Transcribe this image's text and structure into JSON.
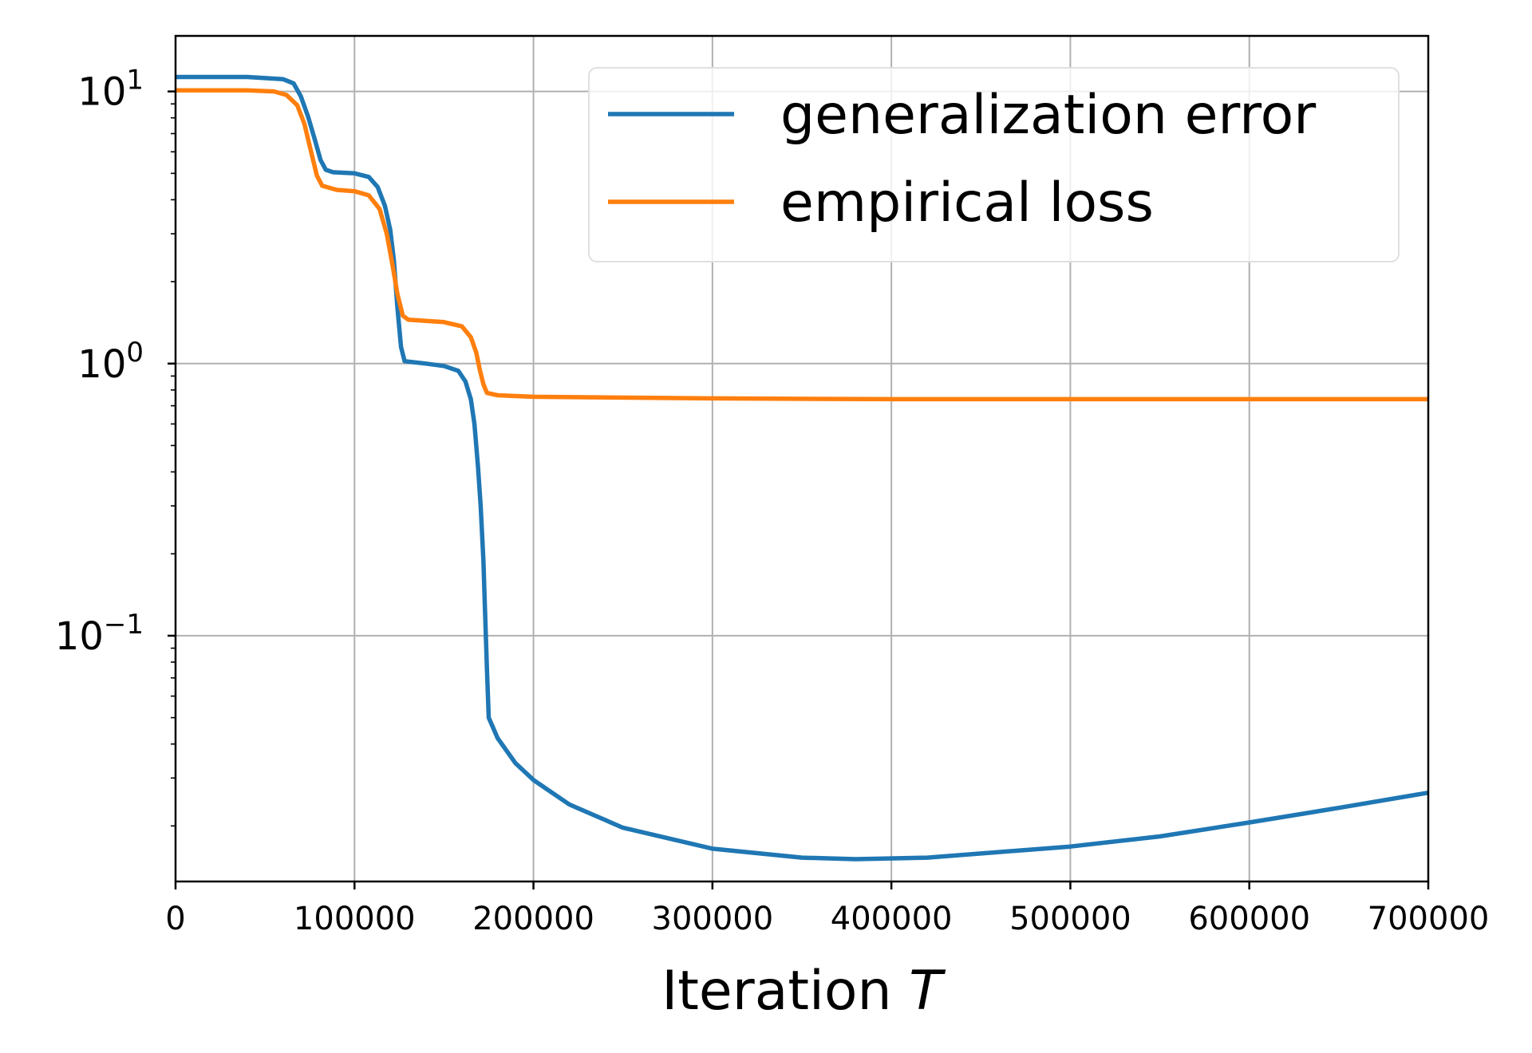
{
  "chart_data": {
    "type": "line",
    "title": "",
    "xlabel_prefix": "Iteration ",
    "xlabel_var": "T",
    "ylabel": "",
    "xscale": "linear",
    "yscale": "log",
    "xlim": [
      0,
      700000
    ],
    "ylim": [
      0.0125,
      16
    ],
    "grid": true,
    "legend_placement": "top-right",
    "x_ticks": [
      {
        "value": 0,
        "label": "0"
      },
      {
        "value": 100000,
        "label": "100000"
      },
      {
        "value": 200000,
        "label": "200000"
      },
      {
        "value": 300000,
        "label": "300000"
      },
      {
        "value": 400000,
        "label": "400000"
      },
      {
        "value": 500000,
        "label": "500000"
      },
      {
        "value": 600000,
        "label": "600000"
      },
      {
        "value": 700000,
        "label": "700000"
      }
    ],
    "y_ticks": [
      {
        "value": 10,
        "base": "10",
        "exp": "1"
      },
      {
        "value": 1,
        "base": "10",
        "exp": "0"
      },
      {
        "value": 0.1,
        "base": "10",
        "exp": "−1"
      }
    ],
    "series": [
      {
        "name": "generalization error",
        "color": "#1f77b4",
        "points": [
          [
            0,
            11.3
          ],
          [
            40000,
            11.3
          ],
          [
            60000,
            11.1
          ],
          [
            66000,
            10.7
          ],
          [
            70000,
            9.6
          ],
          [
            74000,
            8.1
          ],
          [
            78000,
            6.6
          ],
          [
            81000,
            5.6
          ],
          [
            84000,
            5.15
          ],
          [
            88000,
            5.05
          ],
          [
            100000,
            5.0
          ],
          [
            108000,
            4.85
          ],
          [
            113000,
            4.45
          ],
          [
            117000,
            3.8
          ],
          [
            120000,
            3.1
          ],
          [
            122000,
            2.4
          ],
          [
            124000,
            1.6
          ],
          [
            126000,
            1.15
          ],
          [
            128000,
            1.02
          ],
          [
            140000,
            1.0
          ],
          [
            150000,
            0.98
          ],
          [
            158000,
            0.94
          ],
          [
            162000,
            0.86
          ],
          [
            165000,
            0.74
          ],
          [
            167000,
            0.6
          ],
          [
            169000,
            0.42
          ],
          [
            170500,
            0.3
          ],
          [
            172000,
            0.19
          ],
          [
            173000,
            0.12
          ],
          [
            174000,
            0.075
          ],
          [
            175000,
            0.05
          ],
          [
            180000,
            0.042
          ],
          [
            190000,
            0.034
          ],
          [
            200000,
            0.0295
          ],
          [
            220000,
            0.024
          ],
          [
            250000,
            0.0197
          ],
          [
            300000,
            0.0165
          ],
          [
            350000,
            0.0153
          ],
          [
            380000,
            0.0151
          ],
          [
            420000,
            0.0153
          ],
          [
            500000,
            0.0168
          ],
          [
            550000,
            0.0183
          ],
          [
            600000,
            0.0206
          ],
          [
            650000,
            0.0233
          ],
          [
            700000,
            0.0265
          ]
        ]
      },
      {
        "name": "empirical loss",
        "color": "#ff7f0e",
        "points": [
          [
            0,
            10.1
          ],
          [
            40000,
            10.1
          ],
          [
            55000,
            10.0
          ],
          [
            62000,
            9.7
          ],
          [
            68000,
            8.9
          ],
          [
            72000,
            7.6
          ],
          [
            76000,
            5.9
          ],
          [
            79000,
            4.9
          ],
          [
            82000,
            4.5
          ],
          [
            90000,
            4.35
          ],
          [
            100000,
            4.3
          ],
          [
            108000,
            4.15
          ],
          [
            114000,
            3.7
          ],
          [
            118000,
            3.0
          ],
          [
            121000,
            2.35
          ],
          [
            124000,
            1.8
          ],
          [
            127000,
            1.5
          ],
          [
            130000,
            1.45
          ],
          [
            150000,
            1.42
          ],
          [
            160000,
            1.37
          ],
          [
            165000,
            1.25
          ],
          [
            168000,
            1.1
          ],
          [
            170000,
            0.95
          ],
          [
            172000,
            0.84
          ],
          [
            174000,
            0.78
          ],
          [
            180000,
            0.765
          ],
          [
            200000,
            0.755
          ],
          [
            300000,
            0.745
          ],
          [
            400000,
            0.74
          ],
          [
            500000,
            0.74
          ],
          [
            600000,
            0.74
          ],
          [
            700000,
            0.74
          ]
        ]
      }
    ]
  }
}
